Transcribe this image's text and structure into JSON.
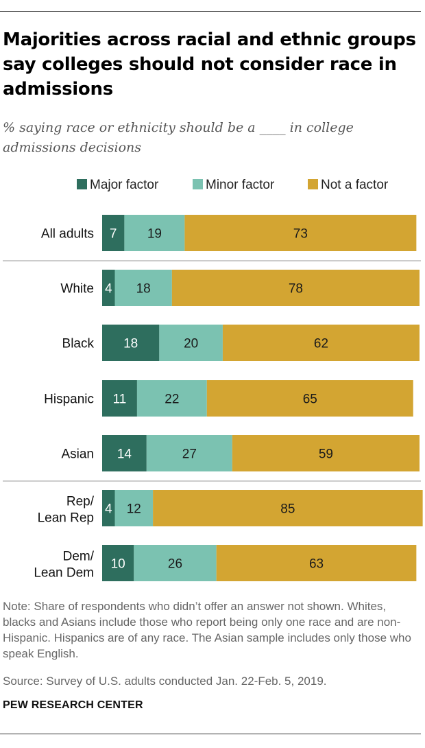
{
  "title": "Majorities across racial and ethnic groups say colleges should not consider race in admissions",
  "subtitle": "% saying race or ethnicity should be a ____ in college admissions decisions",
  "note": "Note: Share of respondents who didn’t offer an answer not shown. Whites, blacks and Asians include those who report being only one race and are non-Hispanic. Hispanics are of any race. The Asian sample includes only those who speak English.",
  "source": "Source: Survey of U.S. adults conducted Jan. 22-Feb. 5, 2019.",
  "brand": "PEW RESEARCH CENTER",
  "chart_data": {
    "type": "bar",
    "orientation": "horizontal",
    "stacked": true,
    "title": "Majorities across racial and ethnic groups say colleges should not consider race in admissions",
    "subtitle": "% saying race or ethnicity should be a ____ in college admissions decisions",
    "legend_position": "top",
    "grid": false,
    "xlim": [
      0,
      100
    ],
    "categories": [
      [
        "All adults"
      ],
      [
        "White"
      ],
      [
        "Black"
      ],
      [
        "Hispanic"
      ],
      [
        "Asian"
      ],
      [
        "Rep/",
        "Lean Rep"
      ],
      [
        "Dem/",
        "Lean Dem"
      ]
    ],
    "groups": [
      [
        0
      ],
      [
        1,
        2,
        3,
        4
      ],
      [
        5,
        6
      ]
    ],
    "series": [
      {
        "name": "Major factor",
        "color": "#2e6e5e",
        "label_color": "#ffffff",
        "values": [
          7,
          4,
          18,
          11,
          14,
          4,
          10
        ]
      },
      {
        "name": "Minor factor",
        "color": "#7bc2b1",
        "label_color": "#1a1a1a",
        "values": [
          19,
          18,
          20,
          22,
          27,
          12,
          26
        ]
      },
      {
        "name": "Not a factor",
        "color": "#d3a532",
        "label_color": "#1a1a1a",
        "values": [
          73,
          78,
          62,
          65,
          59,
          85,
          63
        ]
      }
    ]
  }
}
